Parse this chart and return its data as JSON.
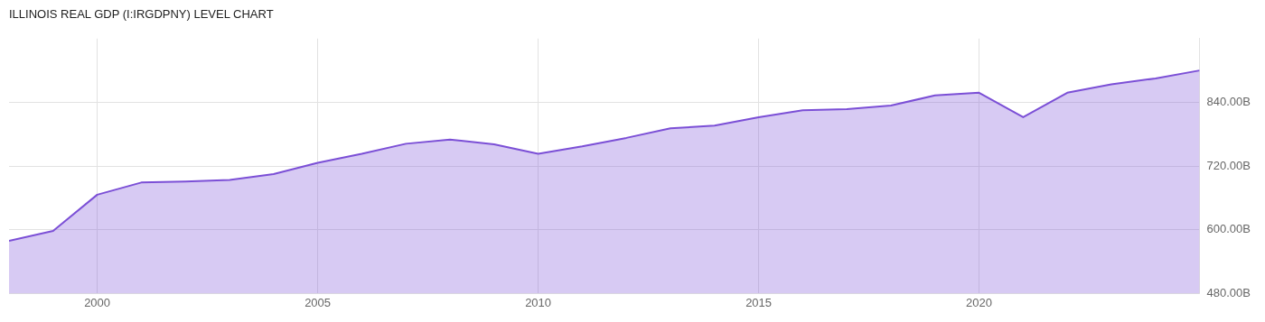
{
  "chart_data": {
    "type": "area",
    "title": "ILLINOIS REAL GDP (I:IRGDPNY) LEVEL CHART",
    "x": [
      1998,
      1999,
      2000,
      2001,
      2002,
      2003,
      2004,
      2005,
      2006,
      2007,
      2008,
      2009,
      2010,
      2011,
      2012,
      2013,
      2014,
      2015,
      2016,
      2017,
      2018,
      2019,
      2020,
      2021,
      2022,
      2023,
      2024,
      2025
    ],
    "series": [
      {
        "color": "#7b4fd6",
        "values": [
          579,
          598,
          666,
          689,
          691,
          694,
          705,
          726,
          743,
          762,
          770,
          761,
          743,
          757,
          773,
          791,
          796,
          812,
          825,
          827,
          834,
          853,
          858,
          812,
          858,
          874,
          885,
          900
        ]
      }
    ],
    "xlim": [
      1998,
      2025
    ],
    "xticks": [
      2000,
      2005,
      2010,
      2015,
      2020
    ],
    "ylim": [
      480,
      960
    ],
    "yticks": [
      {
        "value": 480,
        "label": "480.00B"
      },
      {
        "value": 600,
        "label": "600.00B"
      },
      {
        "value": 720,
        "label": "720.00B"
      },
      {
        "value": 840,
        "label": "840.00B"
      }
    ],
    "grid": true,
    "legend": false,
    "marker": "none",
    "line_style": "solid"
  }
}
